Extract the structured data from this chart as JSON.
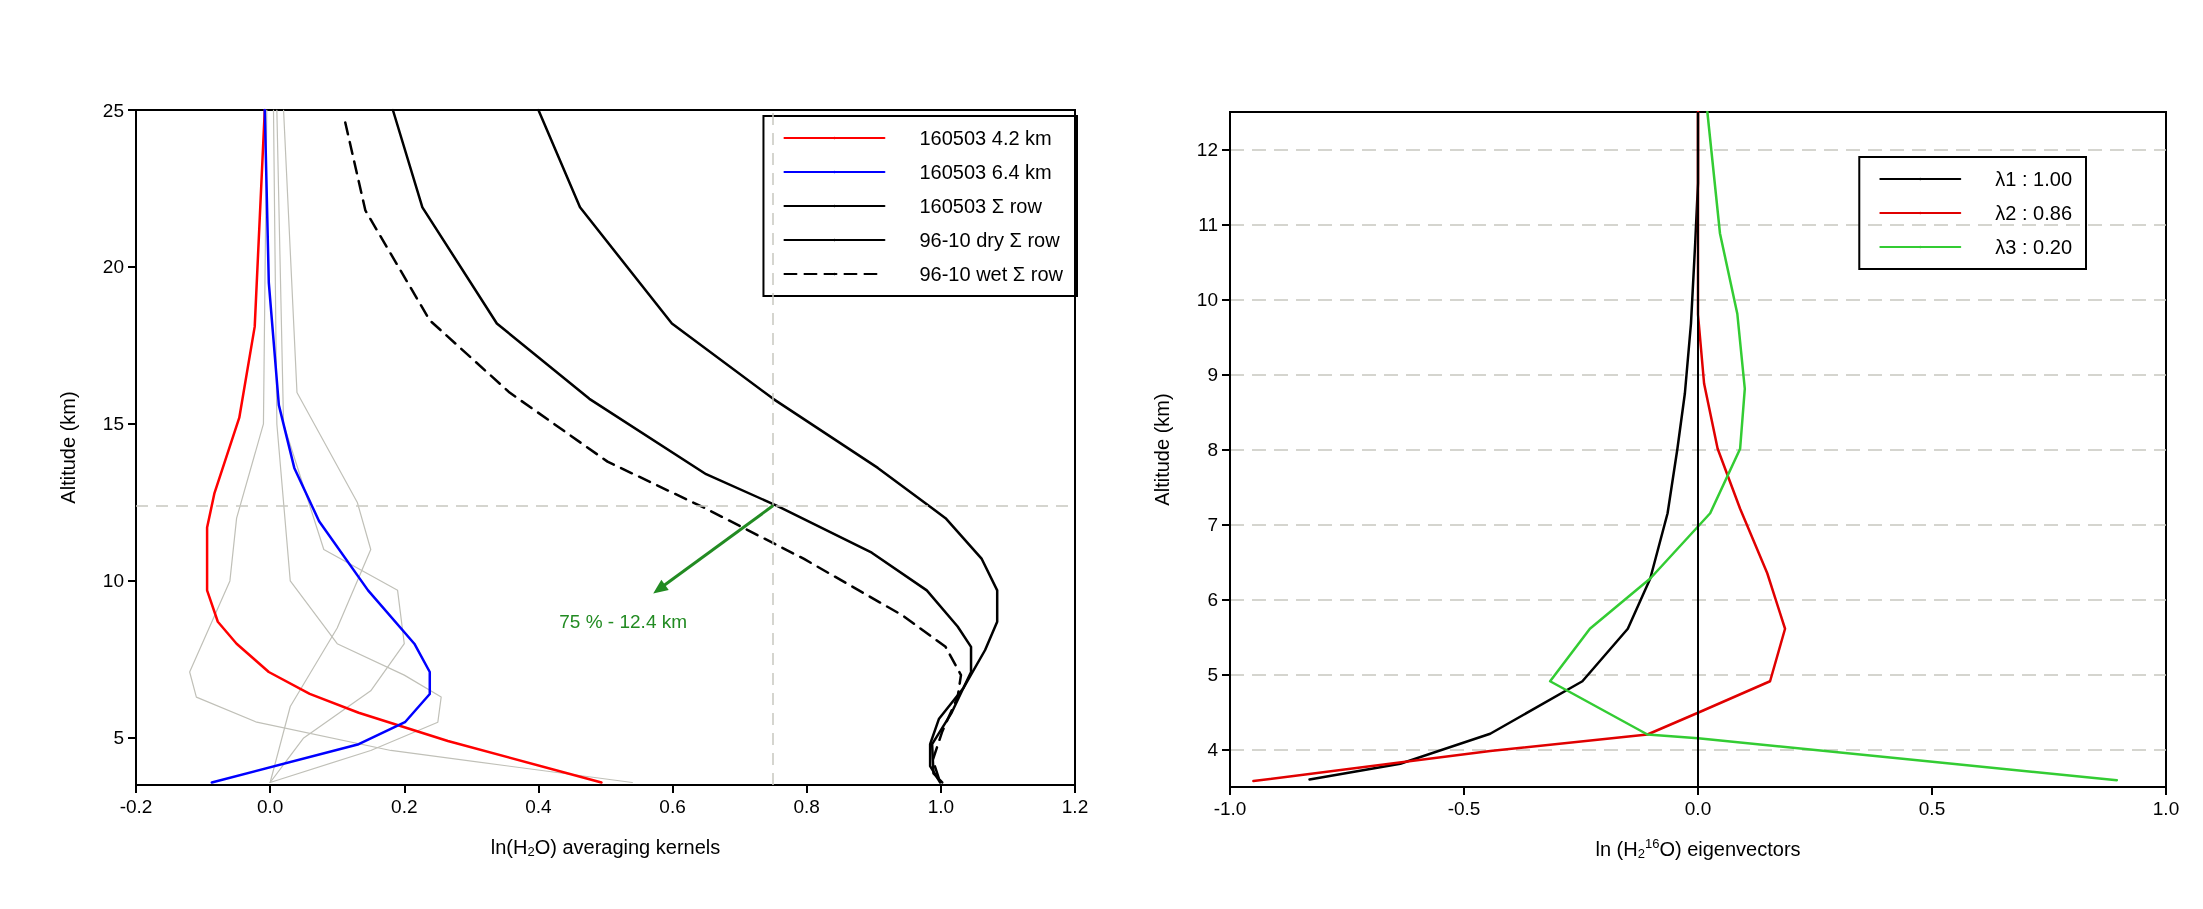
{
  "chart_data": [
    {
      "type": "line",
      "xlabel": "ln(H$_{2}$O) averaging kernels",
      "ylabel": "Altitude (km)",
      "xlim": [
        -0.2,
        1.2
      ],
      "xticks": [
        {
          "value": -0.2,
          "label": "-0.2"
        },
        {
          "value": 0,
          "label": "0.0"
        },
        {
          "value": 0.2,
          "label": "0.2"
        },
        {
          "value": 0.4,
          "label": "0.4"
        },
        {
          "value": 0.6,
          "label": "0.6"
        },
        {
          "value": 0.8,
          "label": "0.8"
        },
        {
          "value": 1,
          "label": "1.0"
        },
        {
          "value": 1.2,
          "label": "1.2"
        }
      ],
      "ylim": [
        3.5,
        25
      ],
      "yticks": [
        5,
        10,
        15,
        20,
        25
      ],
      "legend": "top right",
      "marker": "none",
      "ref_lines": [
        {
          "axis": "y",
          "value": 12.4,
          "color": "#c8c8c0",
          "line_style": "dashed"
        },
        {
          "axis": "x",
          "value": 0.75,
          "color": "#c8c8c0",
          "line_style": "dashed"
        }
      ],
      "annotations": [
        {
          "text": "75 % - 12.4 km",
          "x": 0.75,
          "y": 12.4
        }
      ],
      "series": [
        {
          "color": "#c0c0b8",
          "x": [
            0.005,
            0.01,
            0.03,
            0.1,
            0.2,
            0.255,
            0.25,
            0.15,
            0.0
          ],
          "values": [
            25,
            15,
            10,
            8,
            7,
            6.3,
            5.5,
            4.6,
            3.58
          ]
        },
        {
          "color": "#c0c0b8",
          "x": [
            0.01,
            0.02,
            0.08,
            0.19,
            0.2,
            0.15,
            0.05,
            0.0
          ],
          "values": [
            25,
            15,
            11,
            9.7,
            8,
            6.5,
            5,
            3.58
          ]
        },
        {
          "color": "#c0c0b8",
          "x": [
            0.02,
            0.04,
            0.13,
            0.15,
            0.1,
            0.03,
            0.0
          ],
          "values": [
            25,
            16,
            12.5,
            11,
            8.5,
            6,
            3.58
          ]
        },
        {
          "color": "#c0c0b8",
          "x": [
            -0.005,
            -0.01,
            -0.05,
            -0.06,
            -0.12,
            -0.11,
            -0.02,
            0.18,
            0.54
          ],
          "values": [
            25,
            15,
            12,
            10,
            7.1,
            6.3,
            5.5,
            4.6,
            3.58
          ]
        },
        {
          "name": "160503 4.2 km",
          "color": "#ff0000",
          "x": [
            -0.008,
            -0.023,
            -0.046,
            -0.083,
            -0.094,
            -0.094,
            -0.078,
            -0.05,
            -0.002,
            0.059,
            0.132,
            0.265,
            0.494
          ],
          "values": [
            25,
            18.1,
            15.2,
            12.8,
            11.7,
            9.7,
            8.7,
            8.0,
            7.1,
            6.4,
            5.8,
            4.9,
            3.58
          ]
        },
        {
          "name": "160503 6.4 km",
          "color": "#0000ff",
          "x": [
            -0.008,
            -0.002,
            0.013,
            0.036,
            0.073,
            0.146,
            0.215,
            0.238,
            0.238,
            0.201,
            0.132,
            -0.087
          ],
          "values": [
            25,
            19.5,
            15.6,
            13.6,
            11.9,
            9.7,
            8.0,
            7.1,
            6.4,
            5.5,
            4.8,
            3.58
          ]
        },
        {
          "name": "160503 Σ row",
          "color": "#000000",
          "x": [
            0.183,
            0.227,
            0.338,
            0.476,
            0.65,
            0.755,
            0.897,
            0.979,
            1.025,
            1.045,
            1.045,
            1.016,
            0.987,
            0.989,
            1.002
          ],
          "values": [
            25,
            21.9,
            18.2,
            15.8,
            13.4,
            12.4,
            10.9,
            9.7,
            8.55,
            7.9,
            7.1,
            5.8,
            4.8,
            3.87,
            3.58
          ]
        },
        {
          "name": "96-10 dry Σ row",
          "color": "#000000",
          "x": [
            0.4,
            0.462,
            0.599,
            0.75,
            0.906,
            1.007,
            1.061,
            1.084,
            1.084,
            1.066,
            1.034,
            0.997,
            0.984,
            0.984,
            0.999
          ],
          "values": [
            25,
            21.9,
            18.2,
            15.8,
            13.6,
            12.0,
            10.7,
            9.7,
            8.7,
            7.8,
            6.6,
            5.6,
            4.8,
            4.1,
            3.58
          ]
        },
        {
          "name": "96-10 wet Σ row",
          "color": "#000000",
          "line_style": "dashed",
          "x": [
            0.112,
            0.142,
            0.238,
            0.357,
            0.503,
            0.65,
            0.796,
            0.943,
            1.007,
            1.03,
            1.025,
            1.002,
            0.988,
            0.999
          ],
          "values": [
            24.6,
            21.8,
            18.3,
            16.0,
            13.8,
            12.3,
            10.7,
            8.9,
            7.9,
            7.0,
            6.3,
            5.2,
            4.3,
            3.58
          ]
        }
      ]
    },
    {
      "type": "line",
      "xlabel": "ln (H$_{2}$$^{16}$O) eigenvectors",
      "ylabel": "Altitude (km)",
      "xlim": [
        -1,
        1
      ],
      "xticks": [
        {
          "value": -1,
          "label": "-1.0"
        },
        {
          "value": -0.5,
          "label": "-0.5"
        },
        {
          "value": 0,
          "label": "0.0"
        },
        {
          "value": 0.5,
          "label": "0.5"
        },
        {
          "value": 1,
          "label": "1.0"
        }
      ],
      "ylim": [
        3.5,
        12.5
      ],
      "yticks": [
        4,
        5,
        6,
        7,
        8,
        9,
        10,
        11,
        12
      ],
      "grid": "y",
      "legend": "top right",
      "marker": "none",
      "ref_lines": [
        {
          "axis": "x",
          "value": 0,
          "color": "#000000",
          "line_style": "solid"
        }
      ],
      "series": [
        {
          "name": "λ1 : 1.00",
          "color": "#000000",
          "x": [
            0.0,
            0.0,
            -0.006,
            -0.015,
            -0.028,
            -0.044,
            -0.065,
            -0.102,
            -0.15,
            -0.247,
            -0.444,
            -0.636,
            -0.83
          ],
          "values": [
            12.5,
            11.55,
            10.75,
            9.68,
            8.75,
            8.01,
            7.15,
            6.28,
            5.61,
            4.91,
            4.21,
            3.81,
            3.6
          ]
        },
        {
          "name": "λ2 : 0.86",
          "color": "#e00000",
          "x": [
            0.0,
            0.0,
            0.0,
            0.013,
            0.042,
            0.09,
            0.148,
            0.186,
            0.154,
            0.0,
            -0.108,
            -0.444,
            -0.95
          ],
          "values": [
            12.5,
            11.55,
            9.8,
            8.88,
            8.01,
            7.21,
            6.35,
            5.61,
            4.91,
            4.49,
            4.2,
            3.98,
            3.58
          ]
        },
        {
          "name": "λ3 : 0.20",
          "color": "#33cc33",
          "x": [
            0.02,
            0.047,
            0.084,
            0.1,
            0.09,
            0.026,
            -0.102,
            -0.231,
            -0.316,
            -0.108,
            0.0,
            0.895
          ],
          "values": [
            12.5,
            10.88,
            9.81,
            8.81,
            8.01,
            7.15,
            6.28,
            5.61,
            4.91,
            4.2,
            4.15,
            3.59
          ]
        }
      ]
    }
  ]
}
